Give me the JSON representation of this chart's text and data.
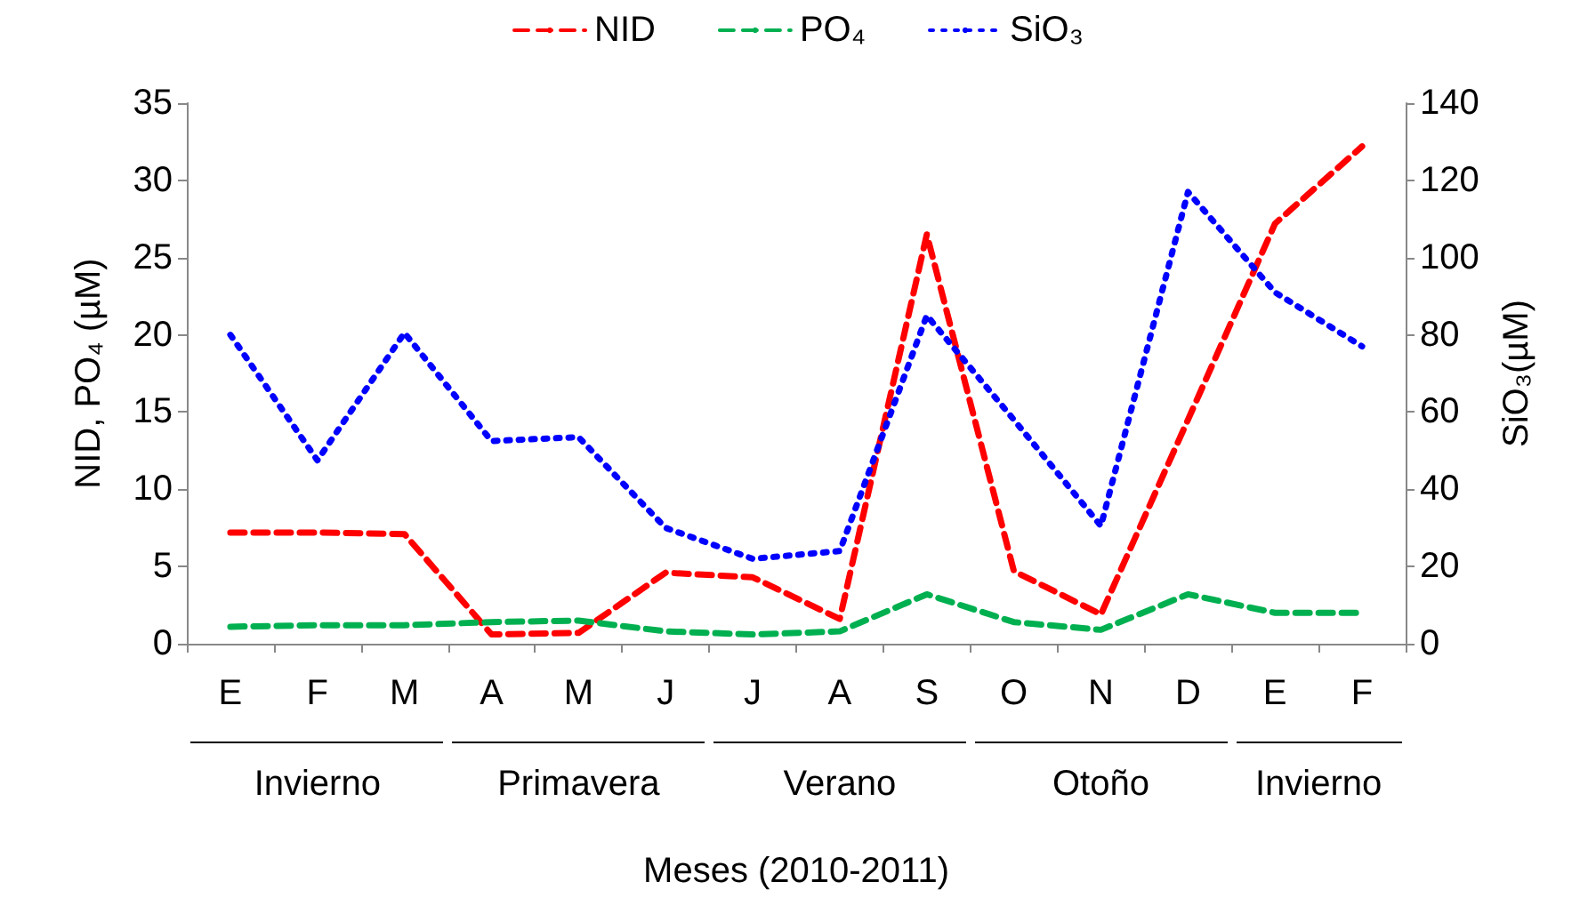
{
  "chart_data": {
    "type": "line",
    "xlabel": "Meses (2010-2011)",
    "ylabel": "NID, PO₄ (µM)",
    "y2label": "SiO₃(µM)",
    "categories": [
      "E",
      "F",
      "M",
      "A",
      "M",
      "J",
      "J",
      "A",
      "S",
      "O",
      "N",
      "D",
      "E",
      "F"
    ],
    "series": [
      {
        "name": "NID",
        "color": "#ff0000",
        "line_style": "dashed",
        "values": [
          7.2,
          7.2,
          7.1,
          0.6,
          0.7,
          4.6,
          4.3,
          1.6,
          26.5,
          4.7,
          1.9,
          14.5,
          27.2,
          32.2
        ]
      },
      {
        "name": "PO₄",
        "color": "#00b050",
        "line_style": "dashed",
        "values": [
          1.1,
          1.2,
          1.2,
          1.4,
          1.5,
          0.8,
          0.6,
          0.8,
          3.2,
          1.4,
          0.9,
          3.2,
          2.0,
          2.0
        ]
      },
      {
        "name": "SiO₃",
        "color": "#0000ff",
        "line_style": "dotted",
        "axis": "y2",
        "values": [
          80,
          47.5,
          80.5,
          52.5,
          53.5,
          30,
          22,
          24,
          85,
          58,
          30.5,
          117,
          91,
          77
        ]
      }
    ],
    "ylim": [
      0,
      35
    ],
    "yticks": [
      0,
      5,
      10,
      15,
      20,
      25,
      30,
      35
    ],
    "y2lim": [
      0,
      140
    ],
    "y2ticks": [
      0,
      20,
      40,
      60,
      80,
      100,
      120,
      140
    ],
    "grid": false,
    "legend": "top",
    "marker": "none",
    "annotations": [
      "Invierno",
      "Primavera",
      "Verano",
      "Otoño",
      "Invierno"
    ]
  }
}
